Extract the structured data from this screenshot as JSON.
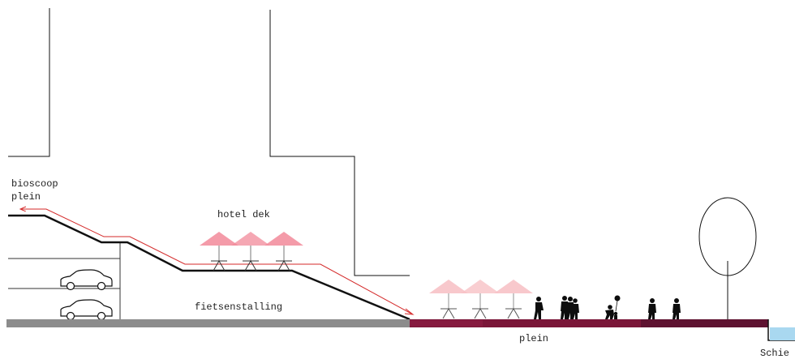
{
  "labels": {
    "cinema_plaza_line1": "bioscoop",
    "cinema_plaza_line2": "plein",
    "hotel_deck": "hotel dek",
    "bike_storage": "fietsenstalling",
    "square": "plein",
    "river": "Schie"
  },
  "colors": {
    "line": "#111111",
    "route_arrow": "#d42a2a",
    "umbrella_deck": "#f28a9a",
    "umbrella_plaza": "#f7c2c6",
    "plaza_surface": "#7a1638",
    "plaza_surface_dark": "#5e1230",
    "ground_grey": "#8c8c8c",
    "water": "#a9d8f0",
    "people": "#0d0d0d"
  },
  "icons": [
    "car-icon",
    "car-icon",
    "umbrella-icon",
    "person-icon",
    "tree-icon"
  ]
}
